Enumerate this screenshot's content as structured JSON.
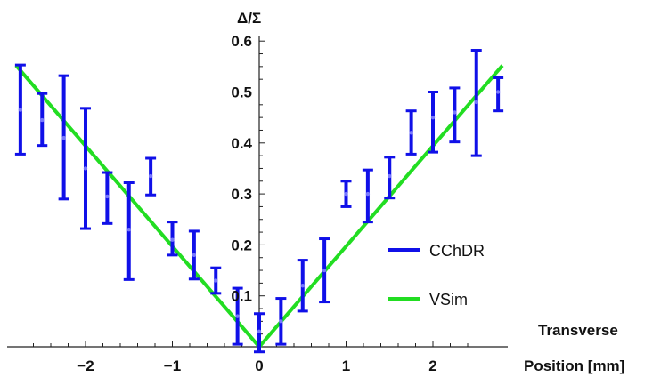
{
  "chart_data": {
    "type": "scatter",
    "ylabel": "Δ/Σ",
    "xlabel_line1": "Transverse",
    "xlabel_line2": "Position [mm]",
    "xlim": [
      -2.8,
      2.8
    ],
    "ylim": [
      0,
      0.6
    ],
    "x_ticks": [
      -2,
      -1,
      0,
      1,
      2
    ],
    "x_tick_labels": [
      "−2",
      "−1",
      "0",
      "1",
      "2"
    ],
    "y_ticks": [
      0.1,
      0.2,
      0.3,
      0.4,
      0.5,
      0.6
    ],
    "y_tick_labels": [
      "0.1",
      "0.2",
      "0.3",
      "0.4",
      "0.5",
      "0.6"
    ],
    "grid": false,
    "legend_position": "right",
    "series": [
      {
        "name": "CChDR",
        "kind": "errorbar",
        "color": "#1010e8",
        "points": [
          {
            "x": -2.75,
            "y": 0.465,
            "err_low": 0.378,
            "err_high": 0.553
          },
          {
            "x": -2.5,
            "y": 0.445,
            "err_low": 0.395,
            "err_high": 0.497
          },
          {
            "x": -2.25,
            "y": 0.41,
            "err_low": 0.29,
            "err_high": 0.532
          },
          {
            "x": -2.0,
            "y": 0.35,
            "err_low": 0.232,
            "err_high": 0.468
          },
          {
            "x": -1.75,
            "y": 0.295,
            "err_low": 0.242,
            "err_high": 0.342
          },
          {
            "x": -1.5,
            "y": 0.23,
            "err_low": 0.132,
            "err_high": 0.322
          },
          {
            "x": -1.25,
            "y": 0.335,
            "err_low": 0.298,
            "err_high": 0.37
          },
          {
            "x": -1.0,
            "y": 0.21,
            "err_low": 0.18,
            "err_high": 0.245
          },
          {
            "x": -0.75,
            "y": 0.18,
            "err_low": 0.133,
            "err_high": 0.227
          },
          {
            "x": -0.5,
            "y": 0.13,
            "err_low": 0.105,
            "err_high": 0.155
          },
          {
            "x": -0.25,
            "y": 0.06,
            "err_low": 0.005,
            "err_high": 0.115
          },
          {
            "x": 0.0,
            "y": 0.03,
            "err_low": -0.01,
            "err_high": 0.065
          },
          {
            "x": 0.25,
            "y": 0.05,
            "err_low": 0.005,
            "err_high": 0.095
          },
          {
            "x": 0.5,
            "y": 0.12,
            "err_low": 0.07,
            "err_high": 0.17
          },
          {
            "x": 0.75,
            "y": 0.15,
            "err_low": 0.088,
            "err_high": 0.212
          },
          {
            "x": 1.0,
            "y": 0.3,
            "err_low": 0.275,
            "err_high": 0.325
          },
          {
            "x": 1.25,
            "y": 0.3,
            "err_low": 0.245,
            "err_high": 0.347
          },
          {
            "x": 1.5,
            "y": 0.335,
            "err_low": 0.292,
            "err_high": 0.372
          },
          {
            "x": 1.75,
            "y": 0.42,
            "err_low": 0.378,
            "err_high": 0.463
          },
          {
            "x": 2.0,
            "y": 0.45,
            "err_low": 0.382,
            "err_high": 0.5
          },
          {
            "x": 2.25,
            "y": 0.46,
            "err_low": 0.402,
            "err_high": 0.508
          },
          {
            "x": 2.5,
            "y": 0.48,
            "err_low": 0.375,
            "err_high": 0.582
          },
          {
            "x": 2.75,
            "y": 0.5,
            "err_low": 0.463,
            "err_high": 0.528
          }
        ]
      },
      {
        "name": "VSim",
        "kind": "line",
        "color": "#22dd22",
        "points": [
          {
            "x": -2.8,
            "y": 0.552
          },
          {
            "x": 0.0,
            "y": 0.0
          },
          {
            "x": 2.8,
            "y": 0.552
          }
        ]
      }
    ]
  }
}
